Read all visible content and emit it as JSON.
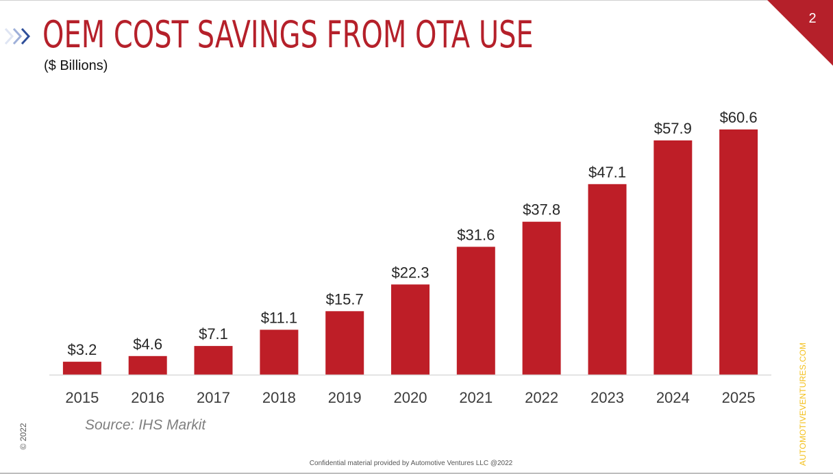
{
  "slide": {
    "title": "OEM COST SAVINGS FROM OTA USE",
    "subtitle": "($ Billions)",
    "page_number": "2",
    "source": "Source: IHS Markit",
    "copyright": "© 2022",
    "website": "AUTOMOTIVEVENTURES.COM",
    "footer": "Confidential material provided by Automotive Ventures LLC @2022"
  },
  "colors": {
    "accent": "#b5202a",
    "bar": "#be1e27",
    "chevron_dark": "#2f4f9a",
    "chevron_light": "#c9d3ea",
    "label_text": "#262626",
    "axis_text": "#3b3b3b",
    "axis_line": "#d9d9d9",
    "website": "#f3c01c"
  },
  "icons": {
    "chevrons": "double-chevron-right-icon",
    "corner": "corner-triangle"
  },
  "chart_data": {
    "type": "bar",
    "title": "OEM COST SAVINGS FROM OTA USE",
    "xlabel": "",
    "ylabel": "($ Billions)",
    "categories": [
      "2015",
      "2016",
      "2017",
      "2018",
      "2019",
      "2020",
      "2021",
      "2022",
      "2023",
      "2024",
      "2025"
    ],
    "values": [
      3.2,
      4.6,
      7.1,
      11.1,
      15.7,
      22.3,
      31.6,
      37.8,
      47.1,
      57.9,
      60.6
    ],
    "data_labels": [
      "$3.2",
      "$4.6",
      "$7.1",
      "$11.1",
      "$15.7",
      "$22.3",
      "$31.6",
      "$37.8",
      "$47.1",
      "$57.9",
      "$60.6"
    ],
    "ylim": [
      0,
      62
    ],
    "grid": false,
    "legend": "none"
  }
}
